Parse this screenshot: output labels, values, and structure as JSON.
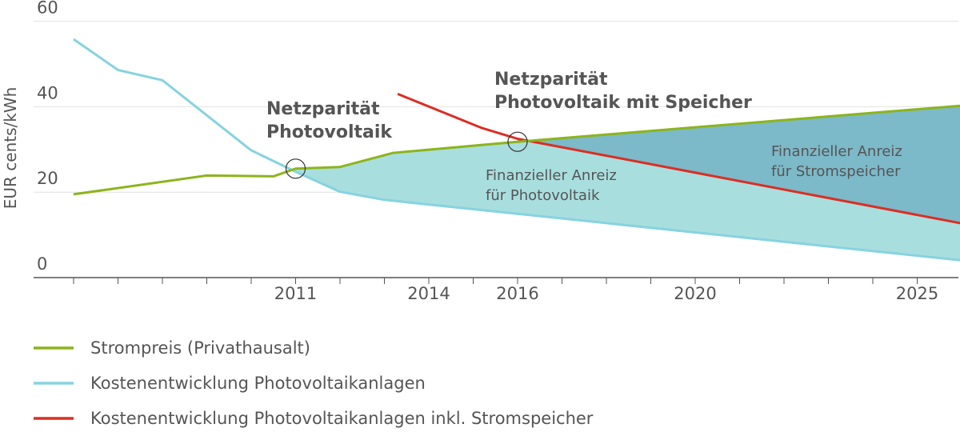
{
  "chart_data": {
    "type": "line",
    "title": "",
    "xlabel": "",
    "ylabel": "EUR cents/kWh",
    "xlim": [
      2005.5,
      2026.3
    ],
    "ylim": [
      0,
      60
    ],
    "y_ticks": [
      "0",
      "20",
      "40",
      "60"
    ],
    "x_tick_labels": [
      {
        "value": 2011,
        "label": "2011"
      },
      {
        "value": 2014,
        "label": "2014"
      },
      {
        "value": 2016,
        "label": "2016"
      },
      {
        "value": 2020,
        "label": "2020"
      },
      {
        "value": 2025,
        "label": "2025"
      }
    ],
    "x_minor_ticks": [
      2006,
      2007,
      2008,
      2009,
      2010,
      2011,
      2012,
      2013,
      2014,
      2015,
      2016,
      2017,
      2018,
      2019,
      2020,
      2021,
      2022,
      2023,
      2024,
      2025,
      2026
    ],
    "grid": true,
    "legend": "bottom-left",
    "series": [
      {
        "name": "Strompreis (Privathausalt)",
        "color": "#8db41c",
        "x": [
          2006,
          2009,
          2010.5,
          2011,
          2012,
          2013.2,
          2016,
          2026.3
        ],
        "y": [
          19.5,
          23.9,
          23.7,
          25.5,
          25.9,
          29.2,
          31.8,
          40.5
        ]
      },
      {
        "name": "Kostenentwicklung Photovoltaikanlagen",
        "color": "#86d3e0",
        "x": [
          2006,
          2007,
          2008,
          2010,
          2011,
          2012,
          2013,
          2026.3
        ],
        "y": [
          55.8,
          48.6,
          46.2,
          29.8,
          24.8,
          20.1,
          18.2,
          3.7
        ]
      },
      {
        "name": "Kostenentwicklung Photovoltaikanlagen inkl. Stromspeicher",
        "color": "#dc2e22",
        "x": [
          2013.3,
          2015.2,
          2016,
          2026.3
        ],
        "y": [
          43,
          35,
          32.5,
          12.1
        ]
      }
    ],
    "areas": [
      {
        "label": "Finanzieller Anreiz\nfür Photovoltaik",
        "between": [
          "Strompreis (Privathausalt)",
          "Kostenentwicklung Photovoltaikanlagen"
        ],
        "from": 2011,
        "color": "#a9dedf"
      },
      {
        "label": "Finanzieller Anreiz\nfür Stromspeicher",
        "between": [
          "Strompreis (Privathausalt)",
          "Kostenentwicklung Photovoltaikanlagen inkl. Stromspeicher"
        ],
        "from": 2016,
        "color": "#7cb9c9"
      }
    ],
    "annotations": [
      {
        "text": [
          "Netzparität",
          "Photovoltaik"
        ],
        "marker_x": 2011,
        "marker_y": 25.5
      },
      {
        "text": [
          "Netzparität",
          "Photovoltaik mit Speicher"
        ],
        "marker_x": 2016,
        "marker_y": 31.8
      },
      {
        "text": [
          "Finanzieller Anreiz",
          "für Photovoltaik"
        ]
      },
      {
        "text": [
          "Finanzieller Anreiz",
          "für Stromspeicher"
        ]
      }
    ]
  }
}
